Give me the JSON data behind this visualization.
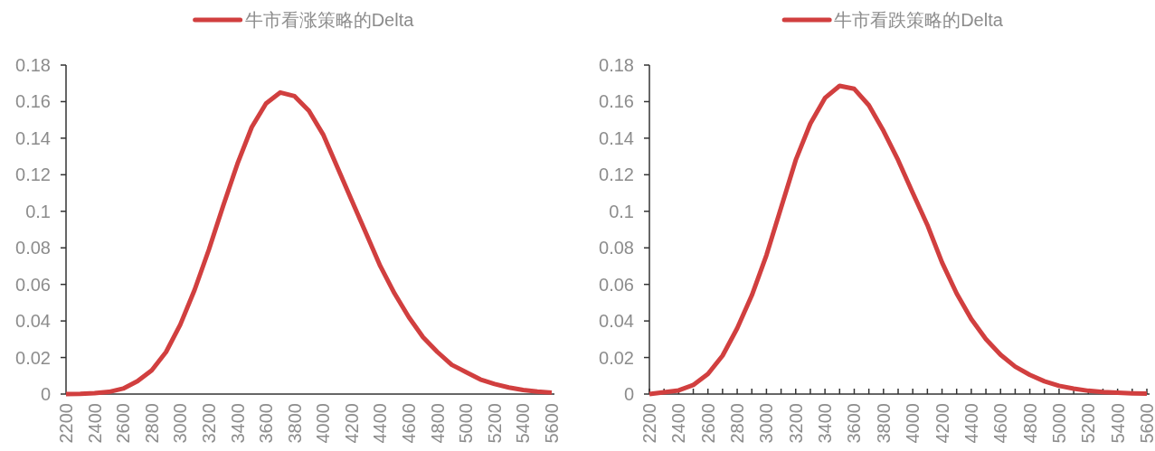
{
  "chart_data": [
    {
      "type": "line",
      "categories": [
        "2200",
        null,
        "2400",
        null,
        "2600",
        null,
        "2800",
        null,
        "3000",
        null,
        "3200",
        null,
        "3400",
        null,
        "3600",
        null,
        "3800",
        null,
        "4000",
        null,
        "4200",
        null,
        "4400",
        null,
        "4600",
        null,
        "4800",
        null,
        "5000",
        null,
        "5200",
        null,
        "5400",
        null,
        "5600"
      ],
      "series": [
        {
          "name": "牛市看涨策略的Delta",
          "color": "#d13f3f",
          "values": [
            0,
            0.0001,
            0.0005,
            0.0012,
            0.003,
            0.007,
            0.013,
            0.023,
            0.038,
            0.057,
            0.079,
            0.103,
            0.126,
            0.146,
            0.159,
            0.165,
            0.163,
            0.155,
            0.142,
            0.124,
            0.106,
            0.088,
            0.07,
            0.055,
            0.042,
            0.031,
            0.023,
            0.016,
            0.012,
            0.008,
            0.0055,
            0.0036,
            0.0022,
            0.0014,
            0.0008
          ]
        }
      ],
      "ylim": [
        0,
        0.18
      ],
      "yticks": [
        0,
        0.02,
        0.04,
        0.06,
        0.08,
        0.1,
        0.12,
        0.14,
        0.16,
        0.18
      ],
      "legend": "top"
    },
    {
      "type": "line",
      "categories": [
        "2200",
        null,
        "2400",
        null,
        "2600",
        null,
        "2800",
        null,
        "3000",
        null,
        "3200",
        null,
        "3400",
        null,
        "3600",
        null,
        "3800",
        null,
        "4000",
        null,
        "4200",
        null,
        "4400",
        null,
        "4600",
        null,
        "4800",
        null,
        "5000",
        null,
        "5200",
        null,
        "5400",
        null,
        "5600"
      ],
      "series": [
        {
          "name": "牛市看跌策略的Delta",
          "color": "#d13f3f",
          "values": [
            0,
            0.001,
            0.002,
            0.005,
            0.011,
            0.021,
            0.036,
            0.054,
            0.076,
            0.102,
            0.128,
            0.148,
            0.162,
            0.1686,
            0.167,
            0.158,
            0.144,
            0.128,
            0.11,
            0.0925,
            0.072,
            0.055,
            0.041,
            0.03,
            0.0215,
            0.015,
            0.0105,
            0.007,
            0.0045,
            0.003,
            0.0018,
            0.0011,
            0.0007,
            0.0004,
            0.0002
          ]
        }
      ],
      "ylim": [
        0,
        0.18
      ],
      "yticks": [
        0,
        0.02,
        0.04,
        0.06,
        0.08,
        0.1,
        0.12,
        0.14,
        0.16,
        0.18
      ],
      "legend": "top"
    }
  ]
}
